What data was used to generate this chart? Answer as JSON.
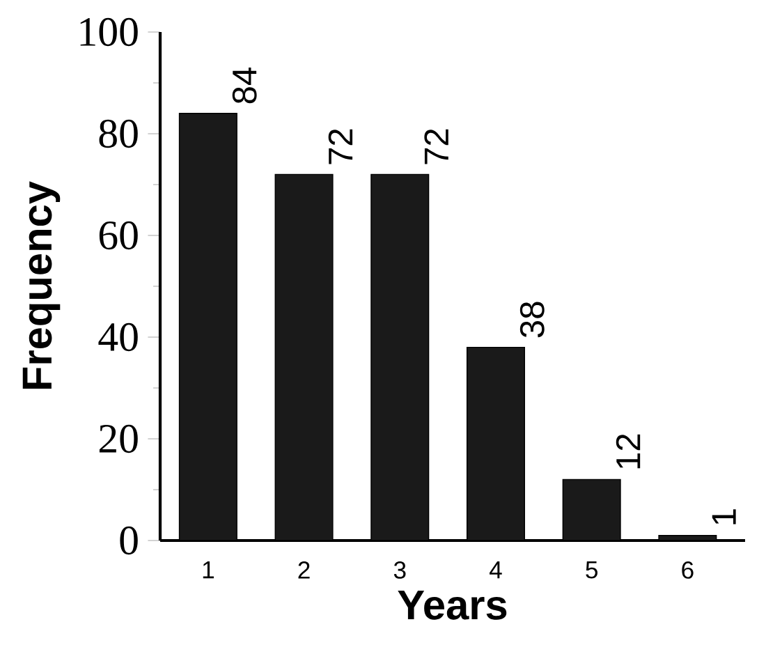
{
  "chart_data": {
    "type": "bar",
    "xlabel": "Years",
    "ylabel": "Frequency",
    "categories": [
      "1",
      "2",
      "3",
      "4",
      "5",
      "6"
    ],
    "values": [
      84,
      72,
      72,
      38,
      12,
      1
    ],
    "color": "#1a1a1a",
    "ylim": [
      0,
      100
    ],
    "yticks": [
      0,
      20,
      40,
      60,
      80,
      100
    ],
    "data_labels": true,
    "grid": false
  }
}
